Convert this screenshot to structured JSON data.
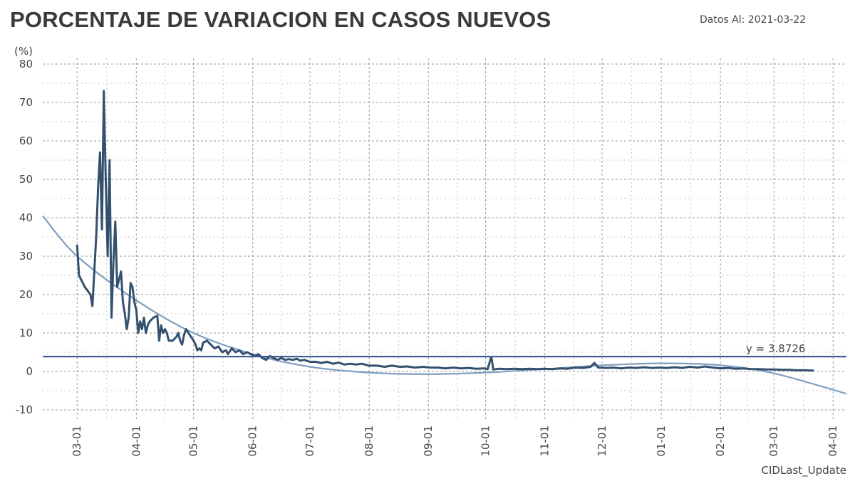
{
  "header": {
    "title": "PORCENTAJE DE VARIACION EN CASOS NUEVOS",
    "date_label": "Datos Al:",
    "date_value": "2021-03-22"
  },
  "colors": {
    "series": "#34506f",
    "trend": "#7f9ec1",
    "reference": "#3f5f94",
    "grid": "#9a9a9a"
  },
  "chart_data": {
    "type": "line",
    "title": "PORCENTAJE DE VARIACION EN CASOS NUEVOS",
    "xlabel": "CIDLast_Update",
    "ylabel": "(%)",
    "ylim": [
      -12,
      80
    ],
    "y_ticks": [
      -10,
      0,
      10,
      20,
      30,
      40,
      50,
      60,
      70,
      80
    ],
    "x_ticks": [
      {
        "date": "2020-03-01",
        "label": "03-01"
      },
      {
        "date": "2020-04-01",
        "label": "04-01"
      },
      {
        "date": "2020-05-01",
        "label": "05-01"
      },
      {
        "date": "2020-06-01",
        "label": "06-01"
      },
      {
        "date": "2020-07-01",
        "label": "07-01"
      },
      {
        "date": "2020-08-01",
        "label": "08-01"
      },
      {
        "date": "2020-09-01",
        "label": "09-01"
      },
      {
        "date": "2020-10-01",
        "label": "10-01"
      },
      {
        "date": "2020-11-01",
        "label": "11-01"
      },
      {
        "date": "2020-12-01",
        "label": "12-01"
      },
      {
        "date": "2021-01-01",
        "label": "01-01"
      },
      {
        "date": "2021-02-01",
        "label": "02-01"
      },
      {
        "date": "2021-03-01",
        "label": "03-01"
      },
      {
        "date": "2021-04-01",
        "label": "04-01"
      }
    ],
    "xlim": [
      "2020-02-12",
      "2021-04-08"
    ],
    "grid": true,
    "series": [
      {
        "values": [
          [
            "2020-03-01",
            33
          ],
          [
            "2020-03-02",
            25
          ],
          [
            "2020-03-05",
            22
          ],
          [
            "2020-03-08",
            20
          ],
          [
            "2020-03-09",
            17
          ],
          [
            "2020-03-11",
            35
          ],
          [
            "2020-03-12",
            48
          ],
          [
            "2020-03-13",
            57
          ],
          [
            "2020-03-14",
            37
          ],
          [
            "2020-03-15",
            73
          ],
          [
            "2020-03-16",
            50
          ],
          [
            "2020-03-17",
            30
          ],
          [
            "2020-03-18",
            55
          ],
          [
            "2020-03-19",
            14
          ],
          [
            "2020-03-20",
            28
          ],
          [
            "2020-03-21",
            39
          ],
          [
            "2020-03-22",
            22
          ],
          [
            "2020-03-23",
            24
          ],
          [
            "2020-03-24",
            26
          ],
          [
            "2020-03-25",
            18
          ],
          [
            "2020-03-26",
            15
          ],
          [
            "2020-03-27",
            11
          ],
          [
            "2020-03-28",
            14
          ],
          [
            "2020-03-29",
            23
          ],
          [
            "2020-03-30",
            22
          ],
          [
            "2020-03-31",
            18
          ],
          [
            "2020-04-01",
            16
          ],
          [
            "2020-04-02",
            10
          ],
          [
            "2020-04-03",
            13
          ],
          [
            "2020-04-04",
            11
          ],
          [
            "2020-04-05",
            14
          ],
          [
            "2020-04-06",
            10
          ],
          [
            "2020-04-07",
            12
          ],
          [
            "2020-04-08",
            13
          ],
          [
            "2020-04-10",
            14
          ],
          [
            "2020-04-12",
            14.5
          ],
          [
            "2020-04-13",
            8
          ],
          [
            "2020-04-14",
            12
          ],
          [
            "2020-04-15",
            10
          ],
          [
            "2020-04-16",
            11
          ],
          [
            "2020-04-17",
            10
          ],
          [
            "2020-04-18",
            8
          ],
          [
            "2020-04-20",
            8
          ],
          [
            "2020-04-22",
            9
          ],
          [
            "2020-04-23",
            10
          ],
          [
            "2020-04-24",
            8
          ],
          [
            "2020-04-25",
            7
          ],
          [
            "2020-04-26",
            9.5
          ],
          [
            "2020-04-27",
            11
          ],
          [
            "2020-04-29",
            9.5
          ],
          [
            "2020-05-01",
            8
          ],
          [
            "2020-05-02",
            7
          ],
          [
            "2020-05-03",
            5.5
          ],
          [
            "2020-05-04",
            6
          ],
          [
            "2020-05-05",
            5.5
          ],
          [
            "2020-05-06",
            7.5
          ],
          [
            "2020-05-08",
            8
          ],
          [
            "2020-05-10",
            7
          ],
          [
            "2020-05-12",
            6
          ],
          [
            "2020-05-14",
            6.5
          ],
          [
            "2020-05-16",
            5
          ],
          [
            "2020-05-18",
            5.5
          ],
          [
            "2020-05-19",
            4.5
          ],
          [
            "2020-05-21",
            6
          ],
          [
            "2020-05-23",
            5
          ],
          [
            "2020-05-25",
            5.5
          ],
          [
            "2020-05-27",
            4.5
          ],
          [
            "2020-05-29",
            5
          ],
          [
            "2020-05-31",
            4.5
          ],
          [
            "2020-06-02",
            4
          ],
          [
            "2020-06-04",
            4.5
          ],
          [
            "2020-06-06",
            3.5
          ],
          [
            "2020-06-08",
            3
          ],
          [
            "2020-06-10",
            4
          ],
          [
            "2020-06-12",
            3.5
          ],
          [
            "2020-06-14",
            3
          ],
          [
            "2020-06-16",
            3.5
          ],
          [
            "2020-06-18",
            3
          ],
          [
            "2020-06-20",
            3.2
          ],
          [
            "2020-06-22",
            3
          ],
          [
            "2020-06-24",
            3.3
          ],
          [
            "2020-06-26",
            2.8
          ],
          [
            "2020-06-28",
            3
          ],
          [
            "2020-07-01",
            2.5
          ],
          [
            "2020-07-04",
            2.5
          ],
          [
            "2020-07-07",
            2.2
          ],
          [
            "2020-07-10",
            2.5
          ],
          [
            "2020-07-13",
            2
          ],
          [
            "2020-07-16",
            2.3
          ],
          [
            "2020-07-19",
            1.8
          ],
          [
            "2020-07-22",
            2
          ],
          [
            "2020-07-25",
            1.8
          ],
          [
            "2020-07-28",
            2
          ],
          [
            "2020-08-01",
            1.5
          ],
          [
            "2020-08-05",
            1.5
          ],
          [
            "2020-08-09",
            1.2
          ],
          [
            "2020-08-13",
            1.5
          ],
          [
            "2020-08-17",
            1.2
          ],
          [
            "2020-08-21",
            1.3
          ],
          [
            "2020-08-25",
            1.0
          ],
          [
            "2020-08-29",
            1.2
          ],
          [
            "2020-09-02",
            1.0
          ],
          [
            "2020-09-06",
            1.0
          ],
          [
            "2020-09-10",
            0.8
          ],
          [
            "2020-09-14",
            1.0
          ],
          [
            "2020-09-18",
            0.8
          ],
          [
            "2020-09-22",
            0.9
          ],
          [
            "2020-09-26",
            0.7
          ],
          [
            "2020-09-30",
            0.8
          ],
          [
            "2020-10-02",
            0.6
          ],
          [
            "2020-10-04",
            3.8
          ],
          [
            "2020-10-05",
            0.5
          ],
          [
            "2020-10-08",
            0.7
          ],
          [
            "2020-10-12",
            0.6
          ],
          [
            "2020-10-16",
            0.7
          ],
          [
            "2020-10-20",
            0.6
          ],
          [
            "2020-10-24",
            0.7
          ],
          [
            "2020-10-28",
            0.6
          ],
          [
            "2020-11-01",
            0.7
          ],
          [
            "2020-11-05",
            0.6
          ],
          [
            "2020-11-09",
            0.8
          ],
          [
            "2020-11-13",
            0.7
          ],
          [
            "2020-11-17",
            1.0
          ],
          [
            "2020-11-21",
            0.9
          ],
          [
            "2020-11-25",
            1.2
          ],
          [
            "2020-11-27",
            2.2
          ],
          [
            "2020-11-29",
            1.0
          ],
          [
            "2020-12-03",
            0.9
          ],
          [
            "2020-12-07",
            1.0
          ],
          [
            "2020-12-11",
            0.8
          ],
          [
            "2020-12-15",
            1.0
          ],
          [
            "2020-12-19",
            0.9
          ],
          [
            "2020-12-23",
            1.1
          ],
          [
            "2020-12-27",
            0.9
          ],
          [
            "2020-12-31",
            1.0
          ],
          [
            "2021-01-04",
            0.9
          ],
          [
            "2021-01-08",
            1.1
          ],
          [
            "2021-01-12",
            0.9
          ],
          [
            "2021-01-16",
            1.2
          ],
          [
            "2021-01-20",
            1.0
          ],
          [
            "2021-01-24",
            1.3
          ],
          [
            "2021-01-28",
            1.0
          ],
          [
            "2021-02-01",
            0.8
          ],
          [
            "2021-02-05",
            0.9
          ],
          [
            "2021-02-09",
            0.7
          ],
          [
            "2021-02-13",
            0.8
          ],
          [
            "2021-02-17",
            0.6
          ],
          [
            "2021-02-21",
            0.6
          ],
          [
            "2021-02-25",
            0.5
          ],
          [
            "2021-03-01",
            0.5
          ],
          [
            "2021-03-05",
            0.4
          ],
          [
            "2021-03-09",
            0.4
          ],
          [
            "2021-03-13",
            0.3
          ],
          [
            "2021-03-17",
            0.3
          ],
          [
            "2021-03-22",
            0.2
          ]
        ]
      }
    ],
    "trend_line": {
      "values": [
        [
          "2020-02-12",
          40.5
        ],
        [
          "2020-03-01",
          30
        ],
        [
          "2020-04-01",
          18.5
        ],
        [
          "2020-05-01",
          10
        ],
        [
          "2020-06-01",
          4.5
        ],
        [
          "2020-07-01",
          1.2
        ],
        [
          "2020-08-01",
          -0.3
        ],
        [
          "2020-09-01",
          -0.7
        ],
        [
          "2020-10-01",
          -0.3
        ],
        [
          "2020-11-01",
          0.6
        ],
        [
          "2020-12-01",
          1.6
        ],
        [
          "2021-01-01",
          2.1
        ],
        [
          "2021-02-01",
          1.6
        ],
        [
          "2021-03-01",
          -0.5
        ],
        [
          "2021-04-08",
          -5.8
        ]
      ]
    },
    "reference_line": {
      "y": 3.8726,
      "label": "y = 3.8726"
    }
  }
}
